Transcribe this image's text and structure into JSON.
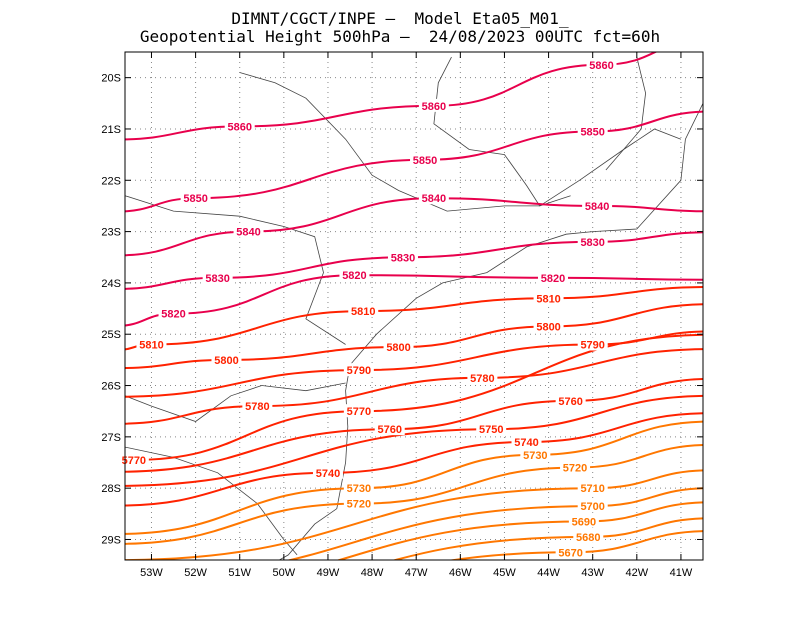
{
  "title": {
    "line1": "DIMNT/CGCT/INPE —  Model Eta05_M01_",
    "line2": "Geopotential Height 500hPa —  24/08/2023 00UTC fct=60h"
  },
  "map": {
    "lon_range": [
      -53.6,
      -40.5
    ],
    "lat_range": [
      -29.4,
      -19.5
    ],
    "lat_ticks": [
      "20S",
      "21S",
      "22S",
      "23S",
      "24S",
      "25S",
      "26S",
      "27S",
      "28S",
      "29S"
    ],
    "lon_ticks": [
      "53W",
      "52W",
      "51W",
      "50W",
      "49W",
      "48W",
      "47W",
      "46W",
      "45W",
      "44W",
      "43W",
      "42W",
      "41W"
    ],
    "contour_interval": 10,
    "colors": {
      "high": "#e8004c",
      "mid": "#ff2200",
      "low": "#ff7700",
      "coast": "#444444",
      "grid": "#888888"
    },
    "labels": [
      {
        "text": "5860",
        "lon": -42.8,
        "lat": -19.75
      },
      {
        "text": "5860",
        "lon": -46.6,
        "lat": -20.55
      },
      {
        "text": "5860",
        "lon": -51.0,
        "lat": -20.95
      },
      {
        "text": "5850",
        "lon": -43.0,
        "lat": -21.05
      },
      {
        "text": "5850",
        "lon": -46.8,
        "lat": -21.6
      },
      {
        "text": "5850",
        "lon": -52.0,
        "lat": -22.35
      },
      {
        "text": "5840",
        "lon": -42.9,
        "lat": -22.5
      },
      {
        "text": "5840",
        "lon": -46.6,
        "lat": -22.35
      },
      {
        "text": "5840",
        "lon": -50.8,
        "lat": -23.0
      },
      {
        "text": "5830",
        "lon": -43.0,
        "lat": -23.2
      },
      {
        "text": "5830",
        "lon": -47.3,
        "lat": -23.5
      },
      {
        "text": "5830",
        "lon": -51.5,
        "lat": -23.9
      },
      {
        "text": "5820",
        "lon": -43.9,
        "lat": -23.9
      },
      {
        "text": "5820",
        "lon": -48.4,
        "lat": -23.85
      },
      {
        "text": "5820",
        "lon": -52.5,
        "lat": -24.6
      },
      {
        "text": "5810",
        "lon": -44.0,
        "lat": -24.3
      },
      {
        "text": "5810",
        "lon": -48.2,
        "lat": -24.55
      },
      {
        "text": "5810",
        "lon": -53.0,
        "lat": -25.2
      },
      {
        "text": "5800",
        "lon": -44.0,
        "lat": -24.85
      },
      {
        "text": "5800",
        "lon": -47.4,
        "lat": -25.25
      },
      {
        "text": "5800",
        "lon": -51.3,
        "lat": -25.5
      },
      {
        "text": "5790",
        "lon": -43.0,
        "lat": -25.2
      },
      {
        "text": "5790",
        "lon": -48.3,
        "lat": -25.7
      },
      {
        "text": "5780",
        "lon": -45.5,
        "lat": -25.85
      },
      {
        "text": "5780",
        "lon": -50.6,
        "lat": -26.4
      },
      {
        "text": "5770",
        "lon": -48.3,
        "lat": -26.5
      },
      {
        "text": "5770",
        "lon": -53.4,
        "lat": -27.45
      },
      {
        "text": "5760",
        "lon": -43.5,
        "lat": -26.3
      },
      {
        "text": "5760",
        "lon": -47.6,
        "lat": -26.85
      },
      {
        "text": "5750",
        "lon": -45.3,
        "lat": -26.85
      },
      {
        "text": "5740",
        "lon": -44.5,
        "lat": -27.1
      },
      {
        "text": "5740",
        "lon": -49.0,
        "lat": -27.7
      },
      {
        "text": "5730",
        "lon": -44.3,
        "lat": -27.35
      },
      {
        "text": "5730",
        "lon": -48.3,
        "lat": -28.0
      },
      {
        "text": "5720",
        "lon": -43.4,
        "lat": -27.6
      },
      {
        "text": "5720",
        "lon": -48.3,
        "lat": -28.3
      },
      {
        "text": "5710",
        "lon": -43.0,
        "lat": -28.0
      },
      {
        "text": "5700",
        "lon": -43.0,
        "lat": -28.35
      },
      {
        "text": "5690",
        "lon": -43.2,
        "lat": -28.65
      },
      {
        "text": "5680",
        "lon": -43.1,
        "lat": -28.95
      },
      {
        "text": "5670",
        "lon": -43.5,
        "lat": -29.25
      }
    ]
  }
}
